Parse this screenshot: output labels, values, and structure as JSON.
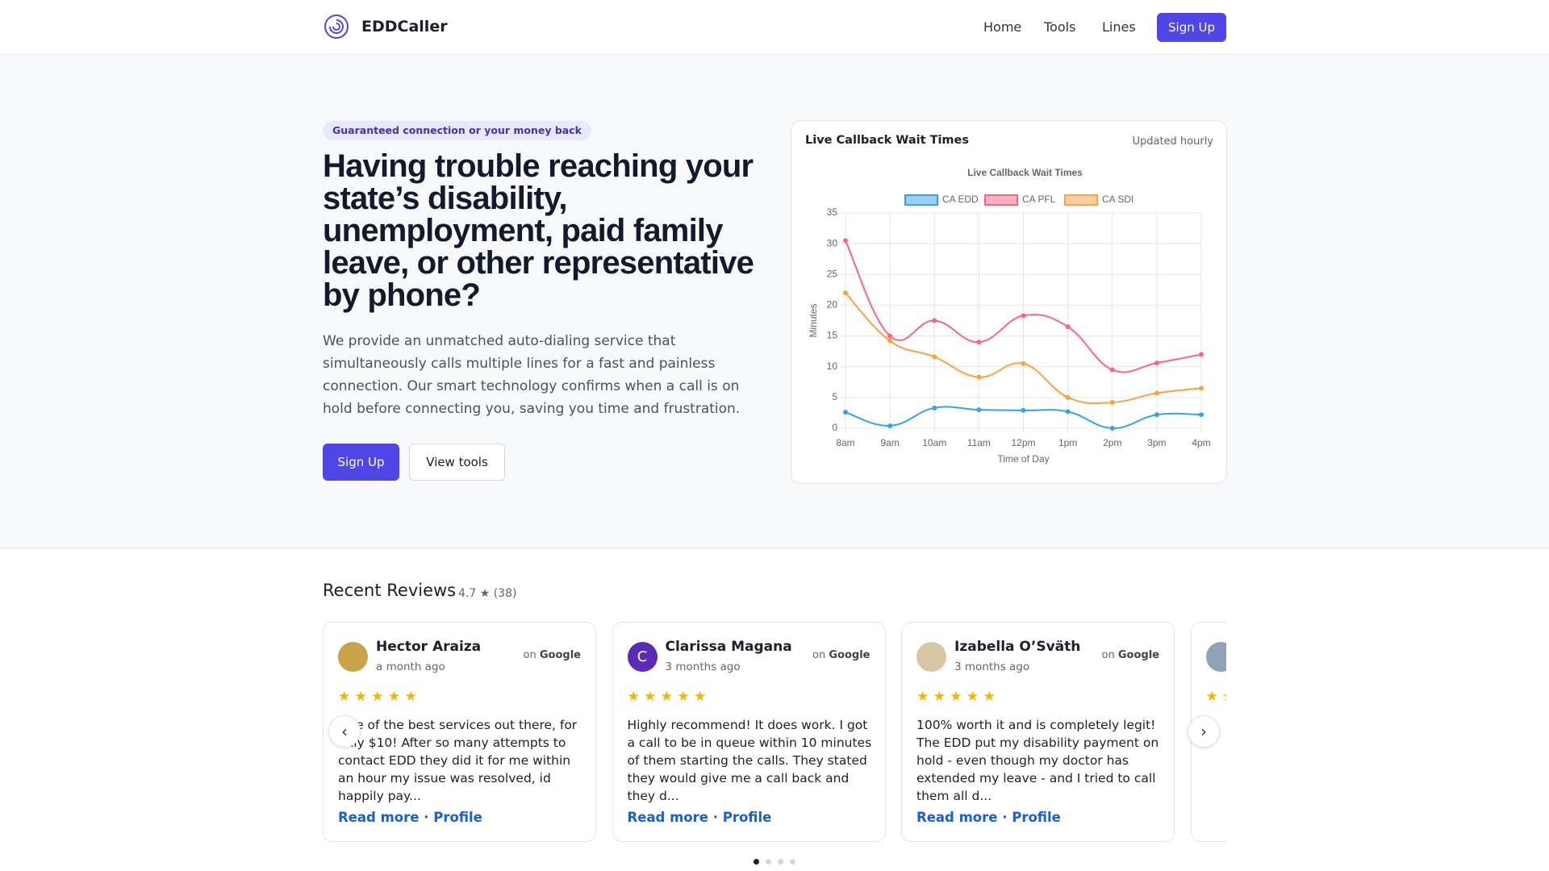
{
  "nav": {
    "brand": "EDDCaller",
    "links": [
      "Home",
      "Tools",
      "Lines"
    ],
    "cta": "Sign Up"
  },
  "hero": {
    "badge": "Guaranteed connection or your money back",
    "heading": "Having trouble reaching your state’s disability, unemployment, paid family leave, or other representative by phone?",
    "body": "We provide an unmatched auto-dialing service that simultaneously calls multiple lines for a fast and painless connection. Our smart technology confirms when a call is on hold before connecting you, saving you time and frustration.",
    "primary": "Sign Up",
    "secondary": "View tools"
  },
  "chart_card": {
    "heading": "Live Callback Wait Times",
    "note": "Updated hourly"
  },
  "chart_data": {
    "type": "line",
    "title": "Live Callback Wait Times",
    "x_label": "Time of Day",
    "y_label": "Minutes",
    "categories": [
      "8am",
      "9am",
      "10am",
      "11am",
      "12pm",
      "1pm",
      "2pm",
      "3pm",
      "4pm"
    ],
    "series": [
      {
        "name": "CA EDD",
        "color": "#36a2eb",
        "values": [
          2.6,
          0.4,
          3.3,
          3.0,
          2.9,
          2.7,
          0,
          2.2,
          2.2
        ]
      },
      {
        "name": "CA PFL",
        "color": "#ff6384",
        "values": [
          30.5,
          15,
          17.5,
          14,
          18.3,
          16.5,
          9.5,
          10.6,
          12
        ]
      },
      {
        "name": "CA SDI",
        "color": "#ff9f40",
        "values": [
          22,
          14.2,
          11.6,
          8.3,
          10.5,
          5,
          4.2,
          5.7,
          6.5
        ]
      }
    ],
    "ylim": [
      0,
      35
    ],
    "yticks": [
      0,
      5,
      10,
      15,
      20,
      25,
      30,
      35
    ],
    "grid": true,
    "legend": "top"
  },
  "reviews": {
    "heading": "Recent Reviews",
    "summary": "4.7 ★ (38)",
    "on": "on",
    "platform": "Google",
    "read_more": "Read more",
    "separator": "·",
    "profile": "Profile",
    "prev": "‹",
    "next": "›",
    "items": [
      {
        "name": "Hector Araiza",
        "time": "a month ago",
        "stars": "★ ★ ★ ★ ★",
        "text": "One of the best services out there, for only $10! After so many attempts to contact EDD they did it for me within an hour my issue was resolved, id happily pay..."
      },
      {
        "name": "Clarissa Magana",
        "initial": "C",
        "time": "3 months ago",
        "stars": "★ ★ ★ ★ ★",
        "text": "Highly recommend! It does work. I got a call to be in queue within 10 minutes of them starting the calls. They stated they would give me a call back and they d..."
      },
      {
        "name": "Izabella O’Sväth",
        "time": "3 months ago",
        "stars": "★ ★ ★ ★ ★",
        "text": "100% worth it and is completely legit! The EDD put my disability payment on hold - even though my doctor has extended my leave - and I tried to call them all d..."
      },
      {
        "stars": "★ ★ ★ ★ ★"
      }
    ]
  }
}
